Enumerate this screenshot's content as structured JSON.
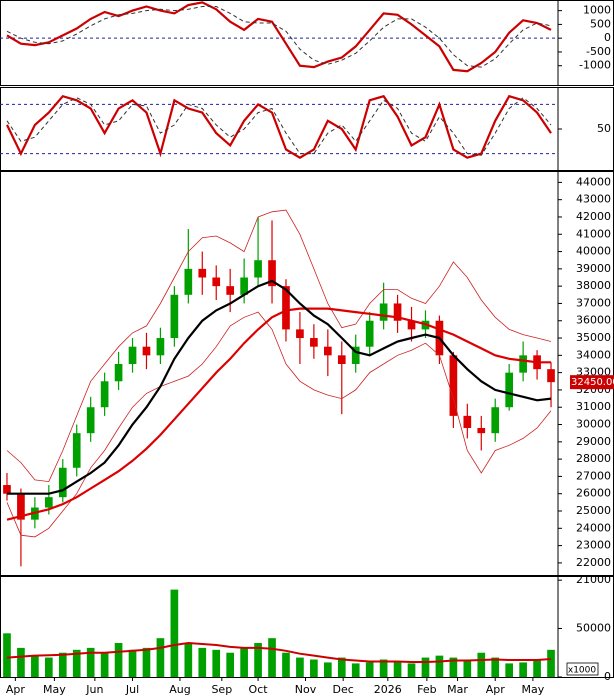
{
  "chart_data": [
    {
      "type": "line",
      "x": [
        0,
        1,
        2,
        3,
        4,
        5,
        6,
        7,
        8,
        9,
        10,
        11,
        12,
        13,
        14,
        15,
        16,
        17,
        18,
        19,
        20,
        21,
        22,
        23,
        24,
        25,
        26,
        27,
        28,
        29,
        30,
        31,
        32,
        33,
        34,
        35,
        36,
        37,
        38,
        39
      ],
      "xlim": [
        -0.5,
        39.5
      ],
      "ylim": [
        -1700,
        1350
      ],
      "yticks": [
        1000,
        500,
        0,
        -500,
        -1000
      ],
      "hlines": [
        0
      ],
      "hline_color": "#2020a0",
      "series": [
        {
          "color": "#cc0000",
          "width": 2.2,
          "dash": false,
          "values": [
            100,
            -200,
            -250,
            -150,
            100,
            350,
            700,
            950,
            800,
            1000,
            1150,
            1000,
            900,
            1200,
            1300,
            1050,
            600,
            300,
            700,
            600,
            -200,
            -1000,
            -1050,
            -850,
            -700,
            -300,
            300,
            900,
            850,
            500,
            100,
            -300,
            -1150,
            -1200,
            -900,
            -500,
            200,
            650,
            550,
            300
          ]
        },
        {
          "color": "#333333",
          "width": 1,
          "dash": true,
          "values": [
            250,
            0,
            -150,
            -200,
            -100,
            150,
            450,
            700,
            850,
            900,
            1000,
            1050,
            1000,
            1050,
            1150,
            1150,
            900,
            600,
            550,
            550,
            250,
            -400,
            -800,
            -950,
            -800,
            -550,
            -100,
            400,
            700,
            700,
            400,
            0,
            -600,
            -1000,
            -1050,
            -750,
            -200,
            300,
            550,
            450
          ]
        }
      ]
    },
    {
      "type": "line",
      "x": [
        0,
        1,
        2,
        3,
        4,
        5,
        6,
        7,
        8,
        9,
        10,
        11,
        12,
        13,
        14,
        15,
        16,
        17,
        18,
        19,
        20,
        21,
        22,
        23,
        24,
        25,
        26,
        27,
        28,
        29,
        30,
        31,
        32,
        33,
        34,
        35,
        36,
        37,
        38,
        39
      ],
      "xlim": [
        -0.5,
        39.5
      ],
      "ylim": [
        0,
        100
      ],
      "yticks": [
        50
      ],
      "hlines": [
        80,
        20
      ],
      "hline_color": "#2020a0",
      "series": [
        {
          "color": "#cc0000",
          "width": 2.2,
          "dash": false,
          "values": [
            55,
            20,
            55,
            70,
            90,
            85,
            75,
            45,
            75,
            85,
            70,
            20,
            85,
            75,
            70,
            45,
            30,
            60,
            80,
            70,
            25,
            15,
            25,
            60,
            50,
            25,
            85,
            90,
            65,
            30,
            40,
            80,
            25,
            15,
            20,
            60,
            90,
            85,
            70,
            45
          ]
        },
        {
          "color": "#333333",
          "width": 1,
          "dash": true,
          "values": [
            60,
            35,
            40,
            60,
            80,
            88,
            80,
            55,
            60,
            80,
            78,
            45,
            55,
            80,
            75,
            55,
            40,
            50,
            70,
            75,
            45,
            20,
            20,
            45,
            55,
            35,
            60,
            85,
            75,
            45,
            35,
            65,
            45,
            20,
            18,
            45,
            75,
            88,
            75,
            55
          ]
        }
      ]
    },
    {
      "type": "candlestick",
      "x": [
        0,
        1,
        2,
        3,
        4,
        5,
        6,
        7,
        8,
        9,
        10,
        11,
        12,
        13,
        14,
        15,
        16,
        17,
        18,
        19,
        20,
        21,
        22,
        23,
        24,
        25,
        26,
        27,
        28,
        29,
        30,
        31,
        32,
        33,
        34,
        35,
        36,
        37,
        38,
        39
      ],
      "xlim": [
        -0.5,
        39.5
      ],
      "ylim": [
        21300,
        44600
      ],
      "yticks": [
        21000,
        22000,
        23000,
        24000,
        25000,
        26000,
        27000,
        28000,
        29000,
        30000,
        31000,
        32000,
        33000,
        34000,
        35000,
        36000,
        37000,
        38000,
        39000,
        40000,
        41000,
        42000,
        43000,
        44000
      ],
      "up_color": "#00a000",
      "down_color": "#dd0000",
      "open": [
        26500,
        26000,
        24500,
        25200,
        25800,
        27500,
        29500,
        31000,
        32500,
        33500,
        34500,
        34000,
        35000,
        37500,
        39000,
        38500,
        38000,
        37500,
        38500,
        39500,
        38000,
        35500,
        35000,
        34500,
        34000,
        33500,
        34500,
        36000,
        37000,
        36000,
        35500,
        36000,
        34000,
        30500,
        29800,
        29500,
        31000,
        33000,
        34000,
        33200
      ],
      "high": [
        27200,
        26300,
        25800,
        26500,
        28000,
        30000,
        31600,
        33000,
        34200,
        35000,
        35300,
        35600,
        38000,
        41300,
        40000,
        39200,
        39000,
        39600,
        42000,
        41800,
        38400,
        36500,
        35800,
        35500,
        34800,
        35200,
        36500,
        38200,
        37500,
        36800,
        36600,
        36300,
        34200,
        31200,
        30500,
        31500,
        33500,
        34800,
        34300,
        33600
      ],
      "low": [
        25600,
        21800,
        24000,
        24800,
        25500,
        27000,
        29000,
        30500,
        32000,
        33000,
        33200,
        33500,
        34500,
        37000,
        37500,
        37200,
        36500,
        37000,
        38000,
        37000,
        34800,
        33500,
        33800,
        32800,
        30600,
        33000,
        34000,
        35500,
        35300,
        34800,
        35000,
        33500,
        29800,
        29200,
        28500,
        29000,
        30800,
        32500,
        32600,
        31000
      ],
      "close": [
        26000,
        24500,
        25200,
        25800,
        27500,
        29500,
        31000,
        32500,
        33500,
        34500,
        34000,
        35000,
        37500,
        39000,
        38500,
        38000,
        37500,
        38500,
        39500,
        38000,
        35500,
        35000,
        34500,
        34000,
        33500,
        34500,
        36000,
        37000,
        36000,
        35500,
        36000,
        34000,
        30500,
        29800,
        29500,
        31000,
        33000,
        34000,
        33200,
        32450
      ],
      "last_price": {
        "value": 32450,
        "label": "32450.00"
      },
      "series": [
        {
          "color": "#cc2222",
          "width": 0.8,
          "values": [
            28500,
            27800,
            26800,
            26700,
            28500,
            30500,
            32500,
            33500,
            34500,
            35300,
            35700,
            37000,
            38500,
            40000,
            40800,
            40900,
            40500,
            40000,
            42000,
            42300,
            42400,
            41000,
            39000,
            37000,
            35600,
            35800,
            37000,
            37800,
            37800,
            37300,
            37000,
            38000,
            39400,
            38500,
            37200,
            36200,
            35500,
            35200,
            35000,
            34800
          ]
        },
        {
          "color": "#cc2222",
          "width": 0.8,
          "values": [
            25500,
            23600,
            23500,
            24000,
            25000,
            26000,
            27500,
            28500,
            29800,
            31000,
            31800,
            32200,
            32500,
            32800,
            33500,
            34500,
            35700,
            36200,
            36500,
            35500,
            33500,
            32500,
            32000,
            31700,
            31500,
            32000,
            33000,
            33500,
            34000,
            34300,
            34700,
            34000,
            31500,
            28500,
            27200,
            28500,
            28800,
            29200,
            29800,
            30800
          ]
        },
        {
          "color": "#dd0000",
          "width": 2.2,
          "values": [
            24500,
            24700,
            24900,
            25100,
            25400,
            25800,
            26300,
            26800,
            27300,
            27900,
            28600,
            29400,
            30300,
            31200,
            32100,
            33000,
            33800,
            34700,
            35500,
            36200,
            36600,
            36700,
            36700,
            36700,
            36600,
            36500,
            36400,
            36300,
            36200,
            36000,
            35800,
            35500,
            35200,
            34800,
            34400,
            34000,
            33800,
            33700,
            33600,
            33600
          ]
        },
        {
          "color": "#000000",
          "width": 2.2,
          "values": [
            26000,
            26000,
            26000,
            26000,
            26200,
            26700,
            27200,
            27800,
            28800,
            30000,
            31000,
            32200,
            33800,
            35000,
            36000,
            36600,
            37000,
            37500,
            38000,
            38300,
            37800,
            37000,
            36300,
            35800,
            35000,
            34200,
            34000,
            34400,
            34800,
            35000,
            35200,
            35000,
            34000,
            33200,
            32500,
            32000,
            31800,
            31600,
            31400,
            31500
          ]
        }
      ]
    },
    {
      "type": "bar",
      "x": [
        0,
        1,
        2,
        3,
        4,
        5,
        6,
        7,
        8,
        9,
        10,
        11,
        12,
        13,
        14,
        15,
        16,
        17,
        18,
        19,
        20,
        21,
        22,
        23,
        24,
        25,
        26,
        27,
        28,
        29,
        30,
        31,
        32,
        33,
        34,
        35,
        36,
        37,
        38,
        39
      ],
      "xlim": [
        -0.5,
        39.5
      ],
      "ylim": [
        0,
        103000
      ],
      "yticks": [
        50000,
        0
      ],
      "unit": "x1000",
      "color": "#00a000",
      "values": [
        45000,
        30000,
        22000,
        20000,
        25000,
        28000,
        30000,
        25000,
        35000,
        28000,
        30000,
        40000,
        90000,
        35000,
        30000,
        28000,
        25000,
        30000,
        35000,
        40000,
        25000,
        20000,
        18000,
        15000,
        20000,
        14000,
        15000,
        18000,
        16000,
        14000,
        20000,
        22000,
        20000,
        17000,
        25000,
        20000,
        14000,
        15000,
        18000,
        28000
      ],
      "series": [
        {
          "color": "#cc0000",
          "width": 2,
          "values": [
            20000,
            21000,
            22000,
            22500,
            23000,
            24000,
            25000,
            25000,
            26000,
            27000,
            28000,
            30000,
            33000,
            35000,
            34000,
            33000,
            31000,
            30000,
            30000,
            29000,
            27000,
            24000,
            22000,
            20000,
            18000,
            17000,
            16000,
            16000,
            16000,
            15500,
            15500,
            16000,
            17000,
            17000,
            17500,
            18000,
            17500,
            17500,
            17500,
            18500
          ]
        }
      ],
      "xticks": [
        {
          "value": 0.6,
          "label": "Apr"
        },
        {
          "value": 3.4,
          "label": "May"
        },
        {
          "value": 6.3,
          "label": "Jun"
        },
        {
          "value": 9,
          "label": "Jul"
        },
        {
          "value": 12.4,
          "label": "Aug"
        },
        {
          "value": 15.4,
          "label": "Sep"
        },
        {
          "value": 18,
          "label": "Oct"
        },
        {
          "value": 21.4,
          "label": "Nov"
        },
        {
          "value": 24.1,
          "label": "Dec"
        },
        {
          "value": 27.3,
          "label": "2026"
        },
        {
          "value": 30.1,
          "label": "Feb"
        },
        {
          "value": 32.3,
          "label": "Mar"
        },
        {
          "value": 35,
          "label": "Apr"
        },
        {
          "value": 37.7,
          "label": "May"
        }
      ]
    }
  ]
}
